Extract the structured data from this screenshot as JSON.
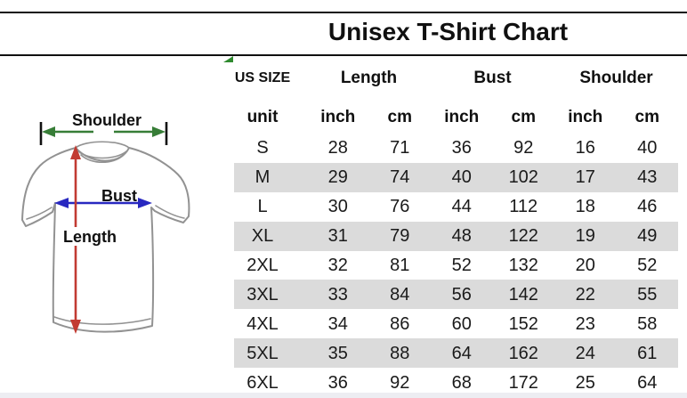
{
  "title": "Unisex T-Shirt Chart",
  "chart_data": {
    "type": "table",
    "title": "Unisex T-Shirt Chart",
    "size_header": "US SIZE",
    "unit_label": "unit",
    "groups": [
      "Length",
      "Bust",
      "Shoulder"
    ],
    "unit_row": [
      "inch",
      "cm",
      "inch",
      "cm",
      "inch",
      "cm"
    ],
    "rows": [
      {
        "size": "S",
        "values": [
          28,
          71,
          36,
          92,
          16,
          40
        ]
      },
      {
        "size": "M",
        "values": [
          29,
          74,
          40,
          102,
          17,
          43
        ]
      },
      {
        "size": "L",
        "values": [
          30,
          76,
          44,
          112,
          18,
          46
        ]
      },
      {
        "size": "XL",
        "values": [
          31,
          79,
          48,
          122,
          19,
          49
        ]
      },
      {
        "size": "2XL",
        "values": [
          32,
          81,
          52,
          132,
          20,
          52
        ]
      },
      {
        "size": "3XL",
        "values": [
          33,
          84,
          56,
          142,
          22,
          55
        ]
      },
      {
        "size": "4XL",
        "values": [
          34,
          86,
          60,
          152,
          23,
          58
        ]
      },
      {
        "size": "5XL",
        "values": [
          35,
          88,
          64,
          162,
          24,
          61
        ]
      },
      {
        "size": "6XL",
        "values": [
          36,
          92,
          68,
          172,
          25,
          64
        ]
      }
    ]
  },
  "diagram": {
    "labels": {
      "shoulder": "Shoulder",
      "bust": "Bust",
      "length": "Length"
    }
  },
  "colors": {
    "stripe": "#DBDBDB",
    "shoulder_arrow": "#377D37",
    "length_arrow": "#C23B32",
    "bust_arrow": "#2828C0",
    "shirt_outline": "#929292",
    "corner_marker": "#2F8A2F"
  }
}
